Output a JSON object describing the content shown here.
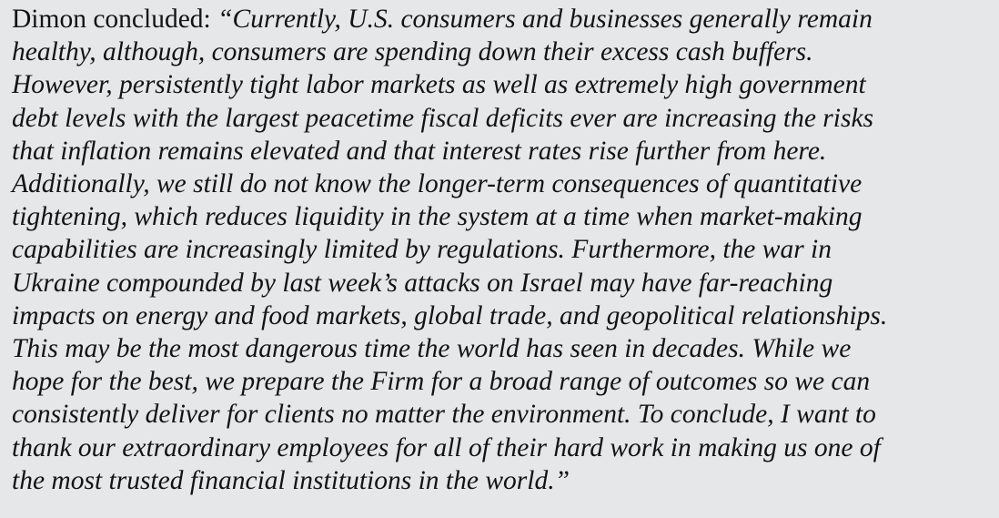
{
  "quote": {
    "speaker_intro": "Dimon concluded: ",
    "lines": [
      "“Currently, U.S. consumers and businesses generally remain",
      "healthy, although, consumers are spending down their excess cash buffers.",
      "However, persistently tight labor markets as well as extremely high government",
      "debt levels with the largest peacetime fiscal deficits ever are increasing the risks",
      "that inflation remains elevated and that interest rates rise further from here.",
      "Additionally, we still do not know the longer-term consequences of quantitative",
      "tightening, which reduces liquidity in the system at a time when market-making",
      "capabilities are increasingly limited by regulations. Furthermore, the war in",
      "Ukraine compounded by last week’s attacks on Israel may have far-reaching",
      "impacts on energy and food markets, global trade, and geopolitical relationships.",
      "This may be the most dangerous time the world has seen in decades. While we",
      "hope for the best, we prepare the Firm for a broad range of outcomes so we can",
      "consistently deliver for clients no matter the environment. To conclude, I want to",
      "thank our extraordinary employees for all of their hard work in making us one of",
      "the most trusted financial institutions in the world.”"
    ]
  },
  "colors": {
    "background": "#e6e7e9",
    "text": "#131313"
  }
}
